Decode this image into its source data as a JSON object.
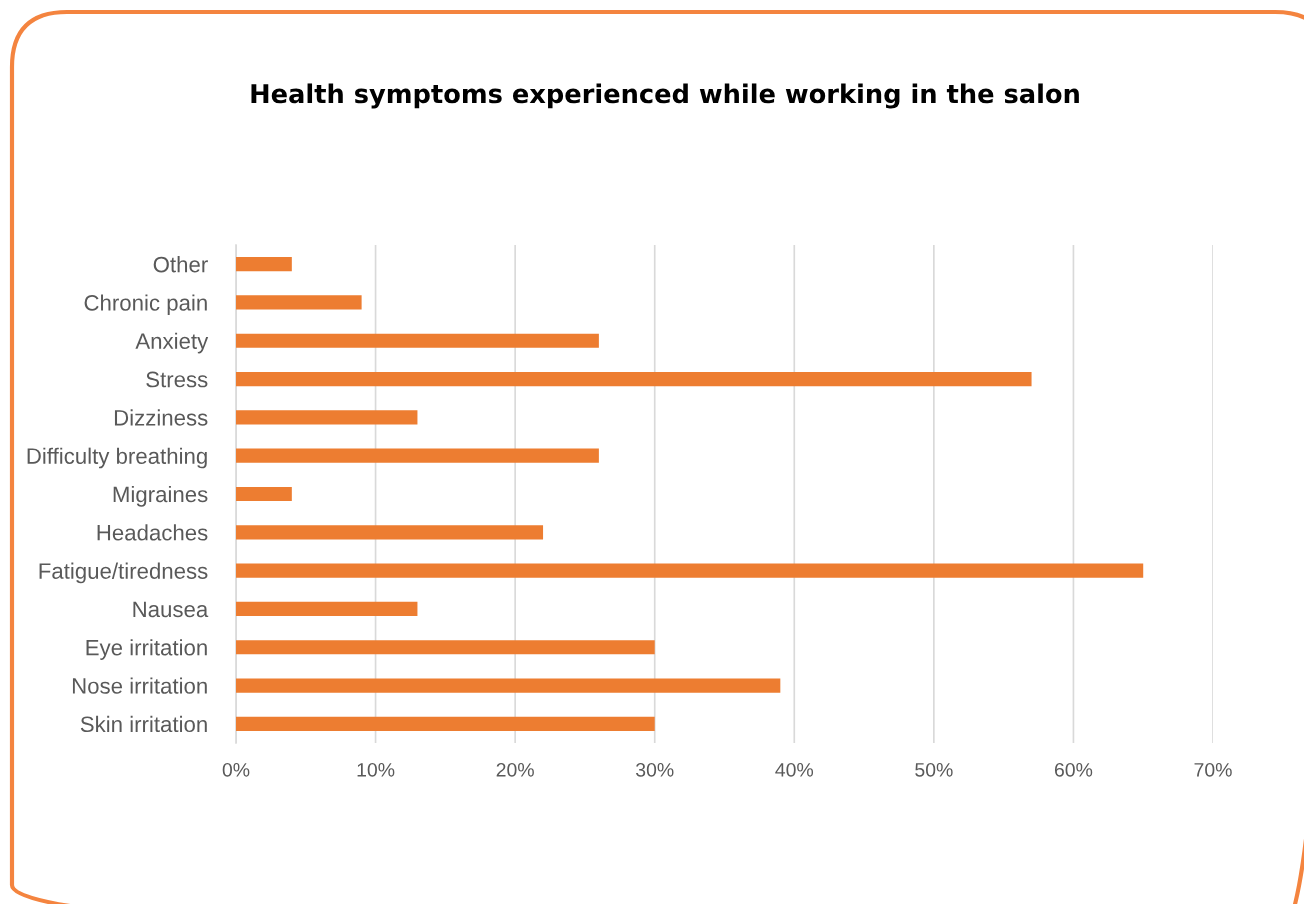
{
  "chart_data": {
    "type": "bar",
    "orientation": "horizontal",
    "title": "Health symptoms experienced while working in the salon",
    "categories": [
      "Other",
      "Chronic pain",
      "Anxiety",
      "Stress",
      "Dizziness",
      "Difficulty breathing",
      "Migraines",
      "Headaches",
      "Fatigue/tiredness",
      "Nausea",
      "Eye irritation",
      "Nose irritation",
      "Skin irritation"
    ],
    "values": [
      4,
      9,
      26,
      57,
      13,
      26,
      4,
      22,
      65,
      13,
      30,
      39,
      30
    ],
    "color": "#ed7d31",
    "xlim": [
      0,
      70
    ],
    "xticks": [
      {
        "value": 0,
        "label": "0%"
      },
      {
        "value": 10,
        "label": "10%"
      },
      {
        "value": 20,
        "label": "20%"
      },
      {
        "value": 30,
        "label": "30%"
      },
      {
        "value": 40,
        "label": "40%"
      },
      {
        "value": 50,
        "label": "50%"
      },
      {
        "value": 60,
        "label": "60%"
      },
      {
        "value": 70,
        "label": "70%"
      }
    ],
    "grid": "x",
    "legend": false
  }
}
